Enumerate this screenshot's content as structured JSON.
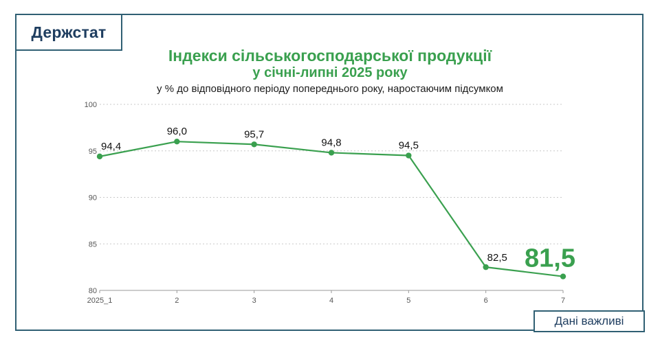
{
  "brand": {
    "name": "Держстат"
  },
  "footer": {
    "label": "Дані важливі"
  },
  "colors": {
    "accent": "#3aa04f",
    "frame": "#2f5f73",
    "text_dark": "#1f3e60"
  },
  "chart_data": {
    "type": "line",
    "title": "Індекси сільськогосподарської продукції",
    "title_line2": "у січні-липні 2025 року",
    "subtitle": "у % до відповідного періоду попереднього року, наростаючим підсумком",
    "categories": [
      "2025_1",
      "2",
      "3",
      "4",
      "5",
      "6",
      "7"
    ],
    "values": [
      94.4,
      96.0,
      95.7,
      94.8,
      94.5,
      82.5,
      81.5
    ],
    "value_labels": [
      "94,4",
      "96,0",
      "95,7",
      "94,8",
      "94,5",
      "82,5",
      "81,5"
    ],
    "ylim": [
      80,
      100
    ],
    "yticks": [
      80,
      85,
      90,
      95,
      100
    ],
    "grid": true,
    "legend": "none",
    "xlabel": "",
    "ylabel": ""
  }
}
